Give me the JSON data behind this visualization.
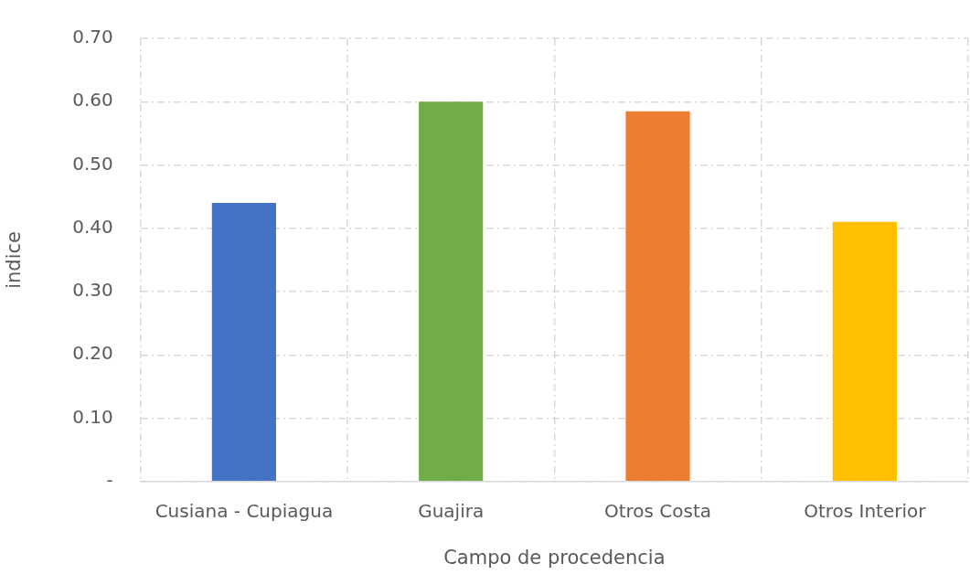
{
  "chart_data": {
    "type": "bar",
    "xlabel": "Campo de procedencia",
    "ylabel": "indice",
    "categories": [
      "Cusiana - Cupiagua",
      "Guajira",
      "Otros Costa",
      "Otros Interior"
    ],
    "values": [
      0.44,
      0.6,
      0.585,
      0.41
    ],
    "colors": [
      "#4472c4",
      "#70ad47",
      "#ed7d31",
      "#ffc000"
    ],
    "ylim": [
      0,
      0.7
    ],
    "yticks": [
      {
        "value": 0,
        "label": "-"
      },
      {
        "value": 0.1,
        "label": "0.10"
      },
      {
        "value": 0.2,
        "label": "0.20"
      },
      {
        "value": 0.3,
        "label": "0.30"
      },
      {
        "value": 0.4,
        "label": "0.40"
      },
      {
        "value": 0.5,
        "label": "0.50"
      },
      {
        "value": 0.6,
        "label": "0.60"
      },
      {
        "value": 0.7,
        "label": "0.70"
      }
    ],
    "grid": true
  }
}
